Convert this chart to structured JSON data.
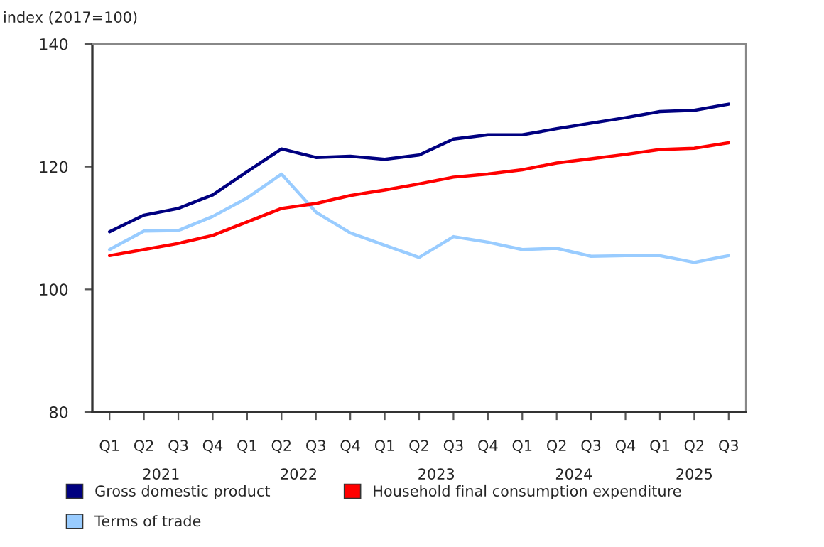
{
  "chart_data": {
    "type": "line",
    "ylabel": "index (2017=100)",
    "categories": [
      "Q1",
      "Q2",
      "Q3",
      "Q4",
      "Q1",
      "Q2",
      "Q3",
      "Q4",
      "Q1",
      "Q2",
      "Q3",
      "Q4",
      "Q1",
      "Q2",
      "Q3",
      "Q4",
      "Q1",
      "Q2",
      "Q3"
    ],
    "annotations": [
      "2021",
      "2022",
      "2023",
      "2024",
      "2025"
    ],
    "series": [
      {
        "name": "Gross domestic product",
        "color": "#000080",
        "values": [
          109.4,
          112.1,
          113.2,
          115.4,
          119.2,
          122.9,
          121.5,
          121.7,
          121.2,
          121.9,
          124.5,
          125.2,
          125.2,
          126.2,
          127.1,
          128.0,
          129.0,
          129.2,
          130.2
        ]
      },
      {
        "name": "Terms of trade",
        "color": "#99ccff",
        "values": [
          106.5,
          109.5,
          109.6,
          111.9,
          114.9,
          118.8,
          112.6,
          109.2,
          107.2,
          105.2,
          108.6,
          107.7,
          106.5,
          106.7,
          105.4,
          105.5,
          105.5,
          104.4,
          105.5
        ]
      },
      {
        "name": "Household final consumption expenditure",
        "color": "#ff0000",
        "values": [
          105.5,
          106.5,
          107.5,
          108.8,
          111.0,
          113.2,
          114.0,
          115.3,
          116.2,
          117.2,
          118.3,
          118.8,
          119.5,
          120.6,
          121.3,
          122.0,
          122.8,
          123.0,
          123.9
        ]
      }
    ],
    "ylim": [
      80,
      140
    ],
    "yticks": [
      80,
      100,
      120,
      140
    ],
    "grid": false,
    "legend": "bottom",
    "marker": "none",
    "line_style": "solid"
  }
}
